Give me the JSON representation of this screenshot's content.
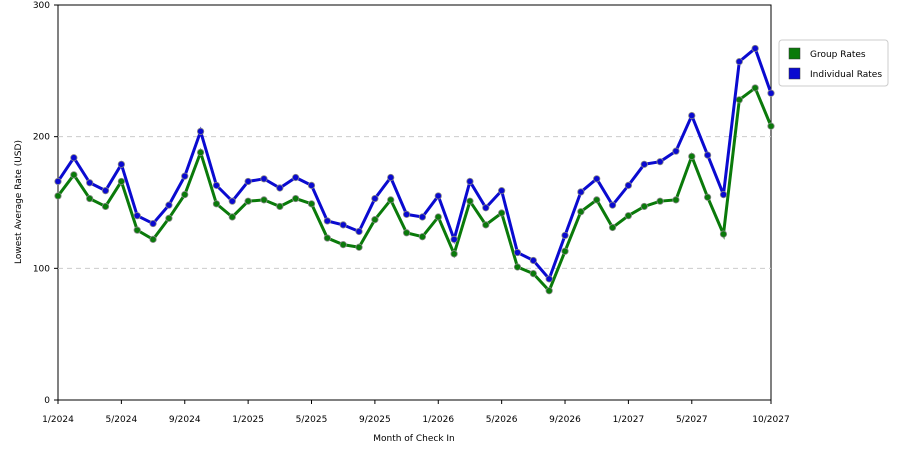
{
  "chart_data": {
    "type": "line",
    "x_label": "Month of Check In",
    "y_label": "Lowest Average Rate (USD)",
    "categories": [
      "1/2024",
      null,
      null,
      null,
      "5/2024",
      null,
      null,
      null,
      "9/2024",
      null,
      null,
      null,
      "1/2025",
      null,
      null,
      null,
      "5/2025",
      null,
      null,
      null,
      "9/2025",
      null,
      null,
      null,
      "1/2026",
      null,
      null,
      null,
      "5/2026",
      null,
      null,
      null,
      "9/2026",
      null,
      null,
      null,
      "1/2027",
      null,
      null,
      null,
      "5/2027",
      null,
      null,
      null,
      null,
      "10/2027"
    ],
    "series": [
      {
        "name": "Group Rates",
        "color": "#0a7a0a",
        "values": [
          155,
          171,
          153,
          147,
          166,
          129,
          122,
          138,
          156,
          188,
          149,
          139,
          151,
          152,
          147,
          153,
          149,
          123,
          118,
          116,
          137,
          152,
          127,
          124,
          139,
          111,
          151,
          133,
          142,
          101,
          96,
          83,
          113,
          143,
          152,
          131,
          140,
          147,
          151,
          152,
          185,
          154,
          126,
          228,
          237,
          208
        ]
      },
      {
        "name": "Individual Rates",
        "color": "#0a0ad0",
        "values": [
          166,
          184,
          165,
          159,
          179,
          140,
          134,
          148,
          170,
          204,
          163,
          151,
          166,
          168,
          161,
          169,
          163,
          136,
          133,
          128,
          153,
          169,
          141,
          139,
          155,
          122,
          166,
          146,
          159,
          112,
          106,
          92,
          125,
          158,
          168,
          148,
          163,
          179,
          181,
          189,
          216,
          186,
          156,
          257,
          267,
          233
        ]
      }
    ],
    "ylim": [
      0,
      300
    ],
    "yticks": [
      0,
      100,
      200,
      300
    ],
    "grid": true,
    "legend": "right"
  }
}
